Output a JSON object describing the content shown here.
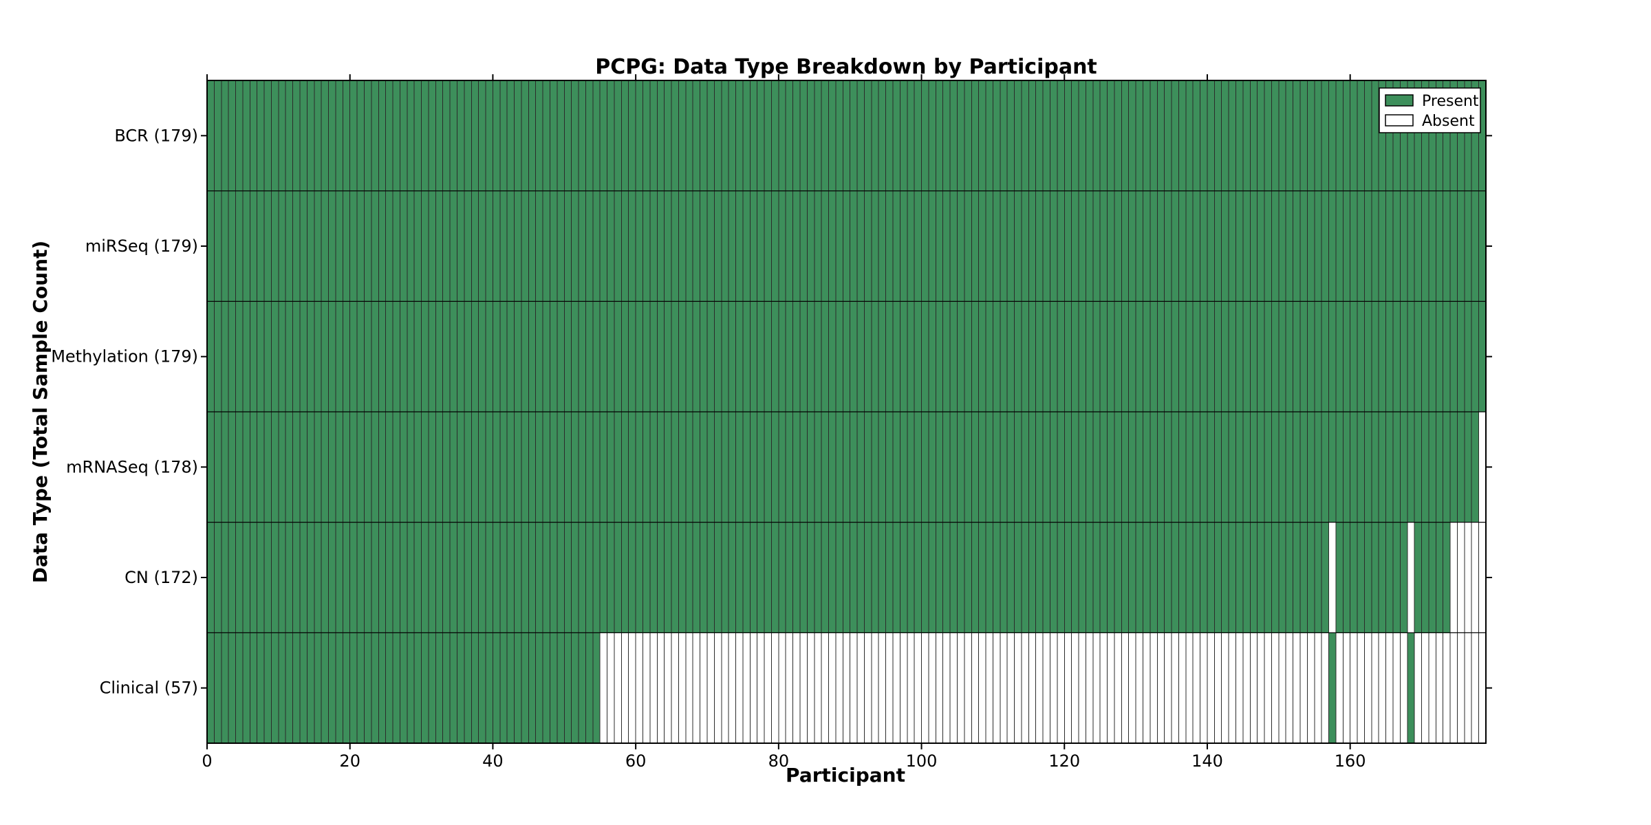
{
  "chart_data": {
    "type": "heatmap",
    "title": "PCPG: Data Type Breakdown by Participant",
    "xlabel": "Participant",
    "ylabel": "Data Type (Total Sample Count)",
    "n_participants": 179,
    "x_ticks": [
      0,
      20,
      40,
      60,
      80,
      100,
      120,
      140,
      160
    ],
    "xlim": [
      0,
      179
    ],
    "grid": false,
    "legend": {
      "position": "upper right",
      "entries": [
        {
          "label": "Present",
          "color": "#3d8f5b"
        },
        {
          "label": "Absent",
          "color": "#ffffff"
        }
      ]
    },
    "colors": {
      "present": "#3d8f5b",
      "absent": "#ffffff",
      "cell_edge": "#2b2b2b",
      "frame": "#000000",
      "background": "#ffffff"
    },
    "rows": [
      {
        "label": "BCR (179)",
        "name": "BCR",
        "total": 179,
        "present_ranges": [
          [
            0,
            178
          ]
        ]
      },
      {
        "label": "miRSeq (179)",
        "name": "miRSeq",
        "total": 179,
        "present_ranges": [
          [
            0,
            178
          ]
        ]
      },
      {
        "label": "Methylation (179)",
        "name": "Methylation",
        "total": 179,
        "present_ranges": [
          [
            0,
            178
          ]
        ]
      },
      {
        "label": "mRNASeq (178)",
        "name": "mRNASeq",
        "total": 178,
        "present_ranges": [
          [
            0,
            177
          ]
        ]
      },
      {
        "label": "CN (172)",
        "name": "CN",
        "total": 172,
        "present_ranges": [
          [
            0,
            156
          ],
          [
            158,
            167
          ],
          [
            169,
            173
          ]
        ]
      },
      {
        "label": "Clinical (57)",
        "name": "Clinical",
        "total": 57,
        "present_ranges": [
          [
            0,
            54
          ],
          [
            157,
            157
          ],
          [
            168,
            168
          ]
        ]
      }
    ]
  }
}
